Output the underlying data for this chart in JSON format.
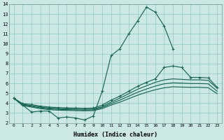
{
  "bg_color": "#cce8e4",
  "grid_color": "#99cccc",
  "line_color": "#1a6655",
  "xlabel": "Humidex (Indice chaleur)",
  "xlim": [
    -0.5,
    23.5
  ],
  "ylim": [
    2,
    14
  ],
  "xtick_vals": [
    0,
    1,
    2,
    3,
    4,
    5,
    6,
    7,
    8,
    9,
    10,
    11,
    12,
    13,
    14,
    15,
    16,
    17,
    18,
    19,
    20,
    21,
    22,
    23
  ],
  "ytick_vals": [
    2,
    3,
    4,
    5,
    6,
    7,
    8,
    9,
    10,
    11,
    12,
    13,
    14
  ],
  "curve_main_x": [
    0,
    1,
    2,
    3,
    4,
    5,
    6,
    7,
    8,
    9,
    10,
    11,
    12,
    13,
    14,
    15,
    16,
    17,
    18
  ],
  "curve_main_y": [
    4.5,
    3.8,
    3.1,
    3.2,
    3.2,
    2.5,
    2.6,
    2.5,
    2.3,
    2.7,
    5.2,
    8.8,
    9.5,
    11.0,
    12.3,
    13.7,
    13.2,
    11.8,
    9.5
  ],
  "curve2_x": [
    0,
    1,
    2,
    3,
    4,
    5,
    6,
    7,
    8,
    9,
    10,
    11,
    12,
    13,
    14,
    15,
    16,
    17,
    18,
    19,
    20,
    21,
    22,
    23
  ],
  "curve2_y": [
    4.5,
    3.95,
    3.85,
    3.7,
    3.6,
    3.55,
    3.52,
    3.5,
    3.48,
    3.5,
    3.8,
    4.3,
    4.7,
    5.2,
    5.7,
    6.1,
    6.45,
    7.6,
    7.75,
    7.6,
    6.6,
    6.6,
    6.55,
    5.6
  ],
  "curve3_x": [
    0,
    1,
    2,
    3,
    4,
    5,
    6,
    7,
    8,
    9,
    10,
    11,
    12,
    13,
    14,
    15,
    16,
    17,
    18,
    19,
    20,
    21,
    22,
    23
  ],
  "curve3_y": [
    4.5,
    3.88,
    3.75,
    3.6,
    3.5,
    3.45,
    3.42,
    3.4,
    3.38,
    3.4,
    3.65,
    4.1,
    4.5,
    4.95,
    5.4,
    5.75,
    6.1,
    6.35,
    6.45,
    6.4,
    6.35,
    6.35,
    6.3,
    5.5
  ],
  "curve4_x": [
    0,
    1,
    2,
    3,
    4,
    5,
    6,
    7,
    8,
    9,
    10,
    11,
    12,
    13,
    14,
    15,
    16,
    17,
    18,
    19,
    20,
    21,
    22,
    23
  ],
  "curve4_y": [
    4.5,
    3.82,
    3.68,
    3.52,
    3.42,
    3.37,
    3.34,
    3.32,
    3.3,
    3.32,
    3.55,
    3.95,
    4.3,
    4.7,
    5.1,
    5.42,
    5.72,
    5.95,
    6.05,
    6.02,
    5.98,
    5.98,
    5.95,
    5.2
  ],
  "curve5_x": [
    0,
    1,
    2,
    3,
    4,
    5,
    6,
    7,
    8,
    9,
    10,
    11,
    12,
    13,
    14,
    15,
    16,
    17,
    18,
    19,
    20,
    21,
    22,
    23
  ],
  "curve5_y": [
    4.5,
    3.75,
    3.6,
    3.44,
    3.34,
    3.29,
    3.26,
    3.24,
    3.22,
    3.24,
    3.45,
    3.8,
    4.1,
    4.45,
    4.8,
    5.1,
    5.35,
    5.55,
    5.65,
    5.62,
    5.6,
    5.6,
    5.55,
    4.95
  ]
}
